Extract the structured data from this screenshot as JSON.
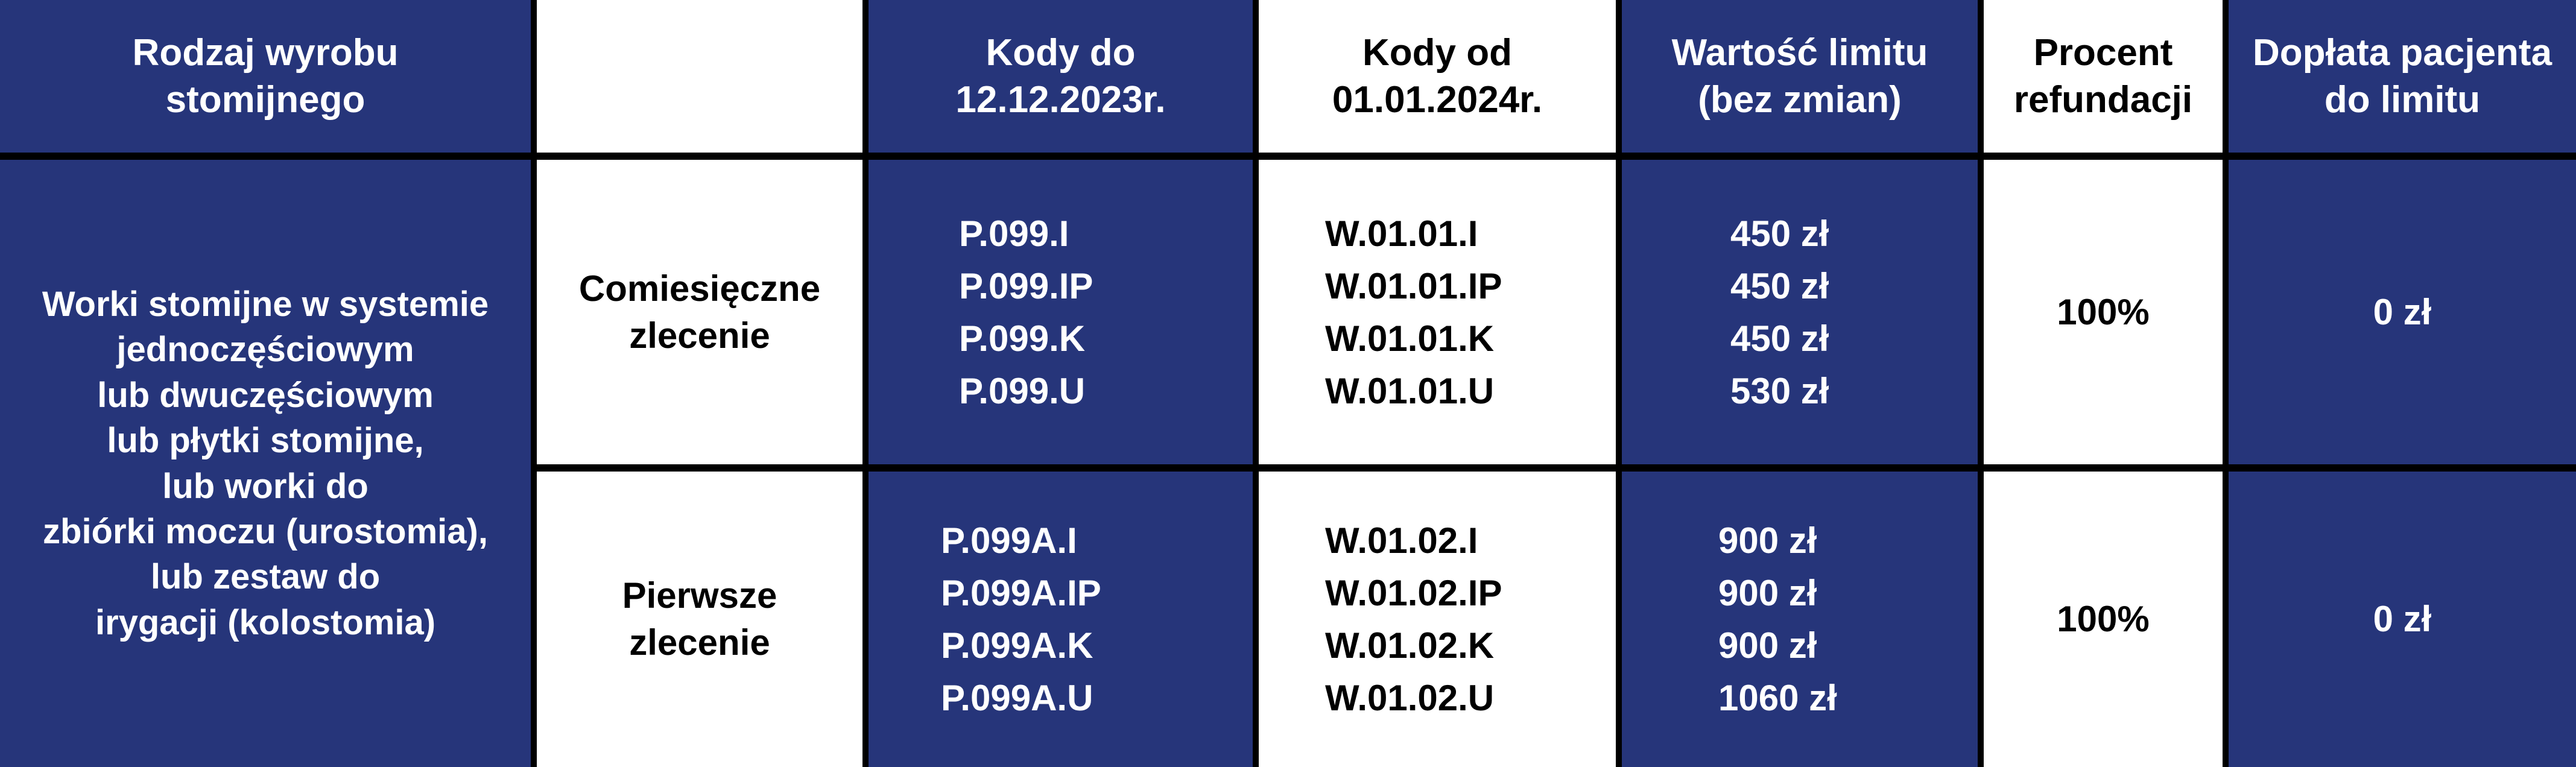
{
  "colors": {
    "navy": "#26357a",
    "white": "#ffffff",
    "border": "#000000"
  },
  "header": {
    "type": "Rodzaj wyrobu stomijnego",
    "empty": "",
    "codes_old": [
      "Kody do",
      "12.12.2023r."
    ],
    "codes_new": [
      "Kody od",
      "01.01.2024r."
    ],
    "limit": [
      "Wartość limitu",
      "(bez zmian)"
    ],
    "percent": [
      "Procent",
      "refundacji"
    ],
    "copay": [
      "Dopłata pacjenta",
      "do limitu"
    ]
  },
  "product": [
    "Worki stomijne w systemie",
    "jednoczęściowym",
    "lub dwuczęściowym",
    "lub płytki stomijne,",
    "lub worki do",
    "zbiórki moczu (urostomia),",
    "lub zestaw do",
    "irygacji (kolostomia)"
  ],
  "rows": [
    {
      "order": [
        "Comiesięczne",
        "zlecenie"
      ],
      "codes_old": [
        "P.099.I",
        "P.099.IP",
        "P.099.K",
        "P.099.U"
      ],
      "codes_new": [
        "W.01.01.I",
        "W.01.01.IP",
        "W.01.01.K",
        "W.01.01.U"
      ],
      "limits": [
        "450 zł",
        "450 zł",
        "450 zł",
        "530 zł"
      ],
      "percent": "100%",
      "copay": "0 zł"
    },
    {
      "order": [
        "Pierwsze",
        "zlecenie"
      ],
      "codes_old": [
        "P.099A.I",
        "P.099A.IP",
        "P.099A.K",
        "P.099A.U"
      ],
      "codes_new": [
        "W.01.02.I",
        "W.01.02.IP",
        "W.01.02.K",
        "W.01.02.U"
      ],
      "limits": [
        "900 zł",
        "900 zł",
        "900 zł",
        "1060 zł"
      ],
      "percent": "100%",
      "copay": "0 zł"
    }
  ]
}
